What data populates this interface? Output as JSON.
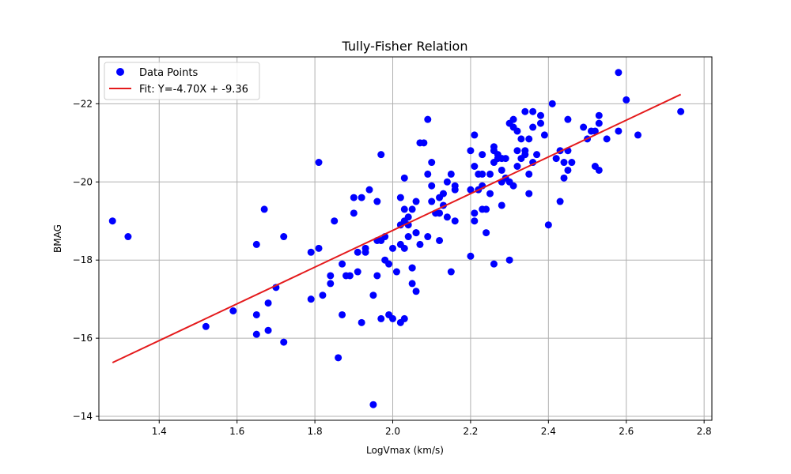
{
  "chart_data": {
    "type": "scatter",
    "title": "Tully-Fisher Relation",
    "xlabel": "LogVmax (km/s)",
    "ylabel": "BMAG",
    "xlim": [
      1.245,
      2.82
    ],
    "ylim": [
      -13.9,
      -23.2
    ],
    "y_inverted": true,
    "grid": true,
    "legend_position": "top-left",
    "x_ticks": [
      1.4,
      1.6,
      1.8,
      2.0,
      2.2,
      2.4,
      2.6,
      2.8
    ],
    "x_tick_labels": [
      "1.4",
      "1.6",
      "1.8",
      "2.0",
      "2.2",
      "2.4",
      "2.6",
      "2.8"
    ],
    "y_ticks": [
      -14,
      -16,
      -18,
      -20,
      -22
    ],
    "y_tick_labels": [
      "−14",
      "−16",
      "−18",
      "−20",
      "−22"
    ],
    "series": [
      {
        "name": "Data Points",
        "kind": "scatter",
        "color": "#0000ff",
        "points": [
          [
            1.28,
            -19.0
          ],
          [
            1.32,
            -18.6
          ],
          [
            1.52,
            -16.3
          ],
          [
            1.59,
            -16.7
          ],
          [
            1.65,
            -18.4
          ],
          [
            1.65,
            -16.6
          ],
          [
            1.65,
            -16.1
          ],
          [
            1.67,
            -19.3
          ],
          [
            1.68,
            -16.9
          ],
          [
            1.68,
            -16.2
          ],
          [
            1.7,
            -17.3
          ],
          [
            1.72,
            -18.6
          ],
          [
            1.72,
            -15.9
          ],
          [
            1.79,
            -18.2
          ],
          [
            1.79,
            -17.0
          ],
          [
            1.81,
            -20.5
          ],
          [
            1.81,
            -18.3
          ],
          [
            1.82,
            -17.1
          ],
          [
            1.84,
            -17.4
          ],
          [
            1.84,
            -17.6
          ],
          [
            1.85,
            -19.0
          ],
          [
            1.86,
            -15.5
          ],
          [
            1.87,
            -17.9
          ],
          [
            1.87,
            -16.6
          ],
          [
            1.88,
            -17.6
          ],
          [
            1.89,
            -17.6
          ],
          [
            1.9,
            -19.6
          ],
          [
            1.9,
            -19.2
          ],
          [
            1.91,
            -18.2
          ],
          [
            1.91,
            -17.7
          ],
          [
            1.92,
            -16.4
          ],
          [
            1.92,
            -19.6
          ],
          [
            1.93,
            -18.3
          ],
          [
            1.93,
            -18.2
          ],
          [
            1.94,
            -19.8
          ],
          [
            1.95,
            -14.3
          ],
          [
            1.95,
            -17.1
          ],
          [
            1.96,
            -19.5
          ],
          [
            1.96,
            -17.6
          ],
          [
            1.96,
            -18.5
          ],
          [
            1.97,
            -20.7
          ],
          [
            1.97,
            -18.5
          ],
          [
            1.97,
            -16.5
          ],
          [
            1.98,
            -18.6
          ],
          [
            1.98,
            -18.0
          ],
          [
            1.99,
            -17.9
          ],
          [
            1.99,
            -16.6
          ],
          [
            2.0,
            -18.3
          ],
          [
            2.0,
            -16.5
          ],
          [
            2.01,
            -17.7
          ],
          [
            2.02,
            -19.6
          ],
          [
            2.02,
            -18.9
          ],
          [
            2.02,
            -18.4
          ],
          [
            2.02,
            -16.4
          ],
          [
            2.03,
            -20.1
          ],
          [
            2.03,
            -19.3
          ],
          [
            2.03,
            -19.0
          ],
          [
            2.03,
            -18.3
          ],
          [
            2.03,
            -16.5
          ],
          [
            2.04,
            -19.1
          ],
          [
            2.04,
            -18.6
          ],
          [
            2.04,
            -18.9
          ],
          [
            2.05,
            -19.3
          ],
          [
            2.05,
            -17.8
          ],
          [
            2.05,
            -17.4
          ],
          [
            2.05,
            -17.8
          ],
          [
            2.06,
            -19.5
          ],
          [
            2.06,
            -18.7
          ],
          [
            2.06,
            -18.7
          ],
          [
            2.06,
            -17.2
          ],
          [
            2.07,
            -21.0
          ],
          [
            2.07,
            -18.4
          ],
          [
            2.08,
            -21.0
          ],
          [
            2.09,
            -21.6
          ],
          [
            2.09,
            -20.2
          ],
          [
            2.09,
            -18.6
          ],
          [
            2.1,
            -20.5
          ],
          [
            2.1,
            -19.9
          ],
          [
            2.1,
            -19.5
          ],
          [
            2.11,
            -19.2
          ],
          [
            2.12,
            -19.6
          ],
          [
            2.12,
            -19.2
          ],
          [
            2.12,
            -18.5
          ],
          [
            2.13,
            -19.7
          ],
          [
            2.13,
            -19.4
          ],
          [
            2.14,
            -20.0
          ],
          [
            2.14,
            -19.1
          ],
          [
            2.15,
            -17.7
          ],
          [
            2.15,
            -20.2
          ],
          [
            2.16,
            -19.8
          ],
          [
            2.16,
            -19.0
          ],
          [
            2.16,
            -19.9
          ],
          [
            2.2,
            -20.8
          ],
          [
            2.2,
            -19.8
          ],
          [
            2.2,
            -18.1
          ],
          [
            2.21,
            -20.4
          ],
          [
            2.21,
            -19.2
          ],
          [
            2.21,
            -19.0
          ],
          [
            2.21,
            -21.2
          ],
          [
            2.22,
            -20.2
          ],
          [
            2.22,
            -19.8
          ],
          [
            2.23,
            -20.7
          ],
          [
            2.23,
            -19.9
          ],
          [
            2.23,
            -20.2
          ],
          [
            2.23,
            -19.3
          ],
          [
            2.24,
            -19.3
          ],
          [
            2.24,
            -18.7
          ],
          [
            2.25,
            -20.2
          ],
          [
            2.25,
            -19.7
          ],
          [
            2.26,
            -20.5
          ],
          [
            2.26,
            -20.9
          ],
          [
            2.26,
            -17.9
          ],
          [
            2.26,
            -20.8
          ],
          [
            2.27,
            -20.6
          ],
          [
            2.27,
            -20.7
          ],
          [
            2.28,
            -20.3
          ],
          [
            2.28,
            -20.0
          ],
          [
            2.28,
            -19.4
          ],
          [
            2.28,
            -20.6
          ],
          [
            2.29,
            -20.6
          ],
          [
            2.29,
            -20.1
          ],
          [
            2.3,
            -20.0
          ],
          [
            2.3,
            -21.5
          ],
          [
            2.3,
            -18.0
          ],
          [
            2.31,
            -21.6
          ],
          [
            2.31,
            -21.4
          ],
          [
            2.31,
            -19.9
          ],
          [
            2.32,
            -21.3
          ],
          [
            2.32,
            -20.8
          ],
          [
            2.32,
            -20.4
          ],
          [
            2.33,
            -21.1
          ],
          [
            2.33,
            -20.6
          ],
          [
            2.34,
            -21.8
          ],
          [
            2.34,
            -20.8
          ],
          [
            2.34,
            -20.7
          ],
          [
            2.35,
            -21.1
          ],
          [
            2.35,
            -20.2
          ],
          [
            2.35,
            -19.7
          ],
          [
            2.36,
            -21.4
          ],
          [
            2.36,
            -20.5
          ],
          [
            2.36,
            -21.8
          ],
          [
            2.37,
            -20.7
          ],
          [
            2.38,
            -21.5
          ],
          [
            2.38,
            -21.7
          ],
          [
            2.39,
            -21.2
          ],
          [
            2.4,
            -18.9
          ],
          [
            2.41,
            -22.0
          ],
          [
            2.42,
            -20.6
          ],
          [
            2.43,
            -20.8
          ],
          [
            2.43,
            -19.5
          ],
          [
            2.44,
            -20.5
          ],
          [
            2.44,
            -20.1
          ],
          [
            2.45,
            -20.3
          ],
          [
            2.45,
            -20.8
          ],
          [
            2.45,
            -21.6
          ],
          [
            2.46,
            -20.5
          ],
          [
            2.49,
            -21.4
          ],
          [
            2.5,
            -21.1
          ],
          [
            2.51,
            -21.3
          ],
          [
            2.52,
            -21.3
          ],
          [
            2.52,
            -20.4
          ],
          [
            2.53,
            -20.3
          ],
          [
            2.53,
            -21.5
          ],
          [
            2.53,
            -21.7
          ],
          [
            2.55,
            -21.1
          ],
          [
            2.58,
            -22.8
          ],
          [
            2.58,
            -21.3
          ],
          [
            2.6,
            -22.1
          ],
          [
            2.63,
            -21.2
          ],
          [
            2.74,
            -21.8
          ]
        ]
      },
      {
        "name": "Fit: Y=-4.70X + -9.36",
        "kind": "line",
        "color": "#e41a1c",
        "slope": -4.7,
        "intercept": -9.36,
        "x_range": [
          1.28,
          2.74
        ]
      }
    ]
  }
}
